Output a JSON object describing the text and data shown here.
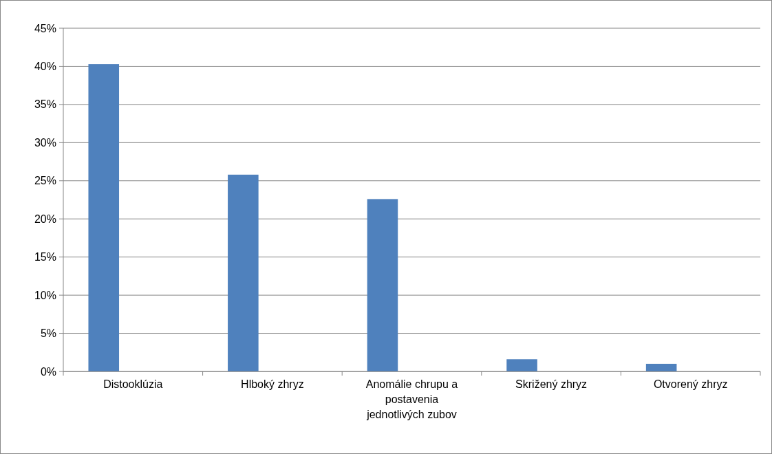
{
  "chart_data": {
    "type": "bar",
    "categories": [
      "Distooklúzia",
      "Hlboký zhryz",
      "Anomálie chrupu a postavenia jednotlivých zubov",
      "Skrižený zhryz",
      "Otvorený zhryz"
    ],
    "values": [
      40.3,
      25.8,
      22.6,
      1.6,
      1.0
    ],
    "color": "#4f81bd",
    "ylim": [
      0,
      45
    ],
    "yticks": [
      {
        "value": 0,
        "label": "0%"
      },
      {
        "value": 5,
        "label": "5%"
      },
      {
        "value": 10,
        "label": "10%"
      },
      {
        "value": 15,
        "label": "15%"
      },
      {
        "value": 20,
        "label": "20%"
      },
      {
        "value": 25,
        "label": "25%"
      },
      {
        "value": 30,
        "label": "30%"
      },
      {
        "value": 35,
        "label": "35%"
      },
      {
        "value": 40,
        "label": "40%"
      },
      {
        "value": 45,
        "label": "45%"
      }
    ],
    "grid": "y"
  }
}
